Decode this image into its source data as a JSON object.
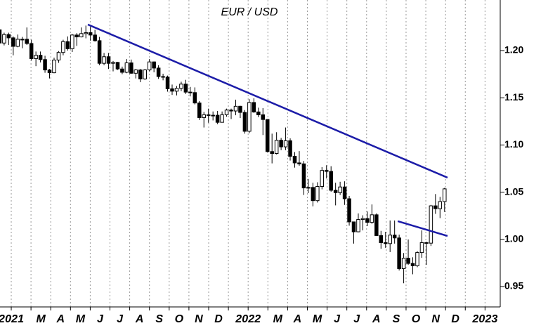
{
  "chart_data": {
    "type": "candlestick",
    "title": "EUR / USD",
    "x": [
      0.41,
      0.64,
      0.87,
      1.1,
      1.33,
      1.56,
      1.79,
      2.02,
      2.25,
      2.48,
      2.71,
      2.94,
      3.17,
      3.4,
      3.63,
      3.86,
      4.09,
      4.32,
      4.55,
      4.78,
      5.01,
      5.24,
      5.47,
      5.7,
      5.93,
      6.16,
      6.39,
      6.62,
      6.85,
      7.08,
      7.31,
      7.54,
      7.77,
      8.0,
      8.23,
      8.46,
      8.69,
      8.92,
      9.15,
      9.38,
      9.61,
      9.84,
      10.07,
      10.3,
      10.53,
      10.76,
      10.99,
      11.22,
      11.45,
      11.68,
      11.91,
      12.14,
      12.37,
      12.6,
      12.83,
      13.06,
      13.29,
      13.52,
      13.75,
      13.98,
      14.21,
      14.44,
      14.67,
      14.9,
      15.13,
      15.36,
      15.59,
      15.82,
      16.05,
      16.28,
      16.51,
      16.74,
      16.97,
      17.2,
      17.43,
      17.66,
      17.89,
      18.12,
      18.35,
      18.58,
      18.81,
      19.04,
      19.27,
      19.5,
      19.73,
      19.96,
      20.19,
      20.42,
      20.65,
      20.88,
      21.11,
      21.34,
      21.57,
      21.8,
      22.03,
      22.26,
      22.49,
      22.72,
      22.95
    ],
    "open": [
      1.222,
      1.208,
      1.217,
      1.2135,
      1.2045,
      1.212,
      1.212,
      1.2075,
      1.1915,
      1.195,
      1.1905,
      1.1795,
      1.1765,
      1.19,
      1.198,
      1.2095,
      1.202,
      1.2165,
      1.2145,
      1.218,
      1.219,
      1.2165,
      1.2105,
      1.1865,
      1.1935,
      1.1865,
      1.1875,
      1.1805,
      1.177,
      1.187,
      1.176,
      1.1795,
      1.17,
      1.1795,
      1.188,
      1.1815,
      1.1725,
      1.172,
      1.1595,
      1.157,
      1.16,
      1.1645,
      1.156,
      1.1555,
      1.1445,
      1.129,
      1.132,
      1.1315,
      1.1315,
      1.124,
      1.132,
      1.137,
      1.136,
      1.141,
      1.1345,
      1.1145,
      1.145,
      1.135,
      1.132,
      1.127,
      1.093,
      1.091,
      1.105,
      1.098,
      1.1045,
      1.088,
      1.081,
      1.08,
      1.0545,
      1.055,
      1.041,
      1.056,
      1.073,
      1.072,
      1.052,
      1.0495,
      1.0555,
      1.043,
      1.0185,
      1.008,
      1.021,
      1.022,
      1.018,
      1.026,
      1.004,
      0.9965,
      0.9955,
      1.0045,
      1.0015,
      0.969,
      0.98,
      0.9745,
      0.972,
      0.986,
      0.9965,
      0.996,
      1.0355,
      1.0325,
      1.04
    ],
    "high": [
      1.225,
      1.219,
      1.219,
      1.215,
      1.217,
      1.2145,
      1.2245,
      1.2115,
      1.199,
      1.199,
      1.1945,
      1.1805,
      1.1925,
      1.1995,
      1.2115,
      1.215,
      1.2175,
      1.2185,
      1.2245,
      1.2265,
      1.2255,
      1.222,
      1.2145,
      1.1975,
      1.1975,
      1.189,
      1.188,
      1.183,
      1.191,
      1.1905,
      1.1805,
      1.1805,
      1.1805,
      1.191,
      1.1885,
      1.1845,
      1.1755,
      1.1735,
      1.164,
      1.1625,
      1.167,
      1.169,
      1.1615,
      1.161,
      1.1465,
      1.135,
      1.1385,
      1.1355,
      1.136,
      1.1355,
      1.1385,
      1.1385,
      1.148,
      1.1415,
      1.137,
      1.1485,
      1.1495,
      1.1395,
      1.139,
      1.127,
      1.112,
      1.1135,
      1.1075,
      1.1185,
      1.107,
      1.0925,
      1.0935,
      1.083,
      1.064,
      1.06,
      1.0605,
      1.0765,
      1.0785,
      1.0775,
      1.06,
      1.061,
      1.0615,
      1.046,
      1.0185,
      1.0275,
      1.0255,
      1.0295,
      1.037,
      1.0275,
      1.009,
      1.008,
      1.02,
      1.02,
      1.005,
      0.9855,
      0.9999,
      0.981,
      0.9875,
      1.0095,
      0.9975,
      1.0365,
      1.048,
      1.045,
      1.0545
    ],
    "low": [
      1.2055,
      1.2055,
      1.206,
      1.195,
      1.2035,
      1.2025,
      1.206,
      1.1895,
      1.1835,
      1.1875,
      1.1765,
      1.1705,
      1.176,
      1.187,
      1.195,
      1.2,
      1.1985,
      1.205,
      1.214,
      1.213,
      1.2105,
      1.2095,
      1.1845,
      1.1845,
      1.1805,
      1.178,
      1.1795,
      1.175,
      1.176,
      1.1755,
      1.1705,
      1.1665,
      1.169,
      1.178,
      1.177,
      1.17,
      1.1685,
      1.1565,
      1.153,
      1.1525,
      1.157,
      1.154,
      1.1515,
      1.143,
      1.1265,
      1.1185,
      1.1235,
      1.126,
      1.122,
      1.1255,
      1.13,
      1.1275,
      1.1315,
      1.1285,
      1.112,
      1.1125,
      1.134,
      1.1295,
      1.1105,
      1.092,
      1.0805,
      1.09,
      1.0945,
      1.0945,
      1.0835,
      1.076,
      1.078,
      1.047,
      1.049,
      1.035,
      1.039,
      1.053,
      1.0645,
      1.0505,
      1.036,
      1.047,
      1.0365,
      1.0145,
      0.9955,
      1.0075,
      1.0095,
      1.014,
      1.0165,
      1.0035,
      0.99,
      0.991,
      0.9865,
      0.9955,
      0.967,
      0.9535,
      0.973,
      0.963,
      0.9705,
      0.9805,
      0.973,
      0.993,
      1.027,
      1.0225,
      1.029
    ],
    "close": [
      1.208,
      1.217,
      1.2135,
      1.2045,
      1.212,
      1.212,
      1.2075,
      1.1915,
      1.195,
      1.1905,
      1.1795,
      1.1765,
      1.19,
      1.198,
      1.2095,
      1.202,
      1.2165,
      1.2145,
      1.218,
      1.219,
      1.2165,
      1.2105,
      1.1865,
      1.1935,
      1.1865,
      1.1875,
      1.1805,
      1.177,
      1.187,
      1.176,
      1.1795,
      1.17,
      1.1795,
      1.188,
      1.1815,
      1.1725,
      1.172,
      1.1595,
      1.157,
      1.16,
      1.1645,
      1.156,
      1.1555,
      1.1445,
      1.129,
      1.132,
      1.1315,
      1.1315,
      1.124,
      1.132,
      1.137,
      1.136,
      1.141,
      1.1345,
      1.1145,
      1.145,
      1.135,
      1.132,
      1.127,
      1.093,
      1.091,
      1.105,
      1.098,
      1.1045,
      1.088,
      1.081,
      1.08,
      1.0545,
      1.055,
      1.041,
      1.056,
      1.073,
      1.072,
      1.052,
      1.0495,
      1.0555,
      1.043,
      1.0185,
      1.008,
      1.021,
      1.022,
      1.018,
      1.026,
      1.004,
      0.9965,
      0.9955,
      1.0045,
      1.0015,
      0.969,
      0.98,
      0.9745,
      0.972,
      0.986,
      0.9965,
      0.996,
      1.0355,
      1.0325,
      1.04,
      1.0535
    ],
    "up_color": "#ffffff",
    "down_color": "#000000",
    "outline_color": "#000000",
    "trendlines": [
      {
        "x": [
          4.88,
          23.1
        ],
        "y": [
          1.2276,
          1.0654
        ],
        "color": "#1c1ca8"
      },
      {
        "x": [
          20.58,
          23.1
        ],
        "y": [
          1.0192,
          1.0036
        ],
        "color": "#1c1ca8"
      }
    ],
    "xlim": [
      0.43,
      25.77
    ],
    "xticks": [
      {
        "value": 0,
        "label": "2021"
      },
      {
        "value": 1,
        "label": null
      },
      {
        "value": 2,
        "label": "M"
      },
      {
        "value": 3,
        "label": "A"
      },
      {
        "value": 4,
        "label": "M"
      },
      {
        "value": 5,
        "label": "J"
      },
      {
        "value": 6,
        "label": "J"
      },
      {
        "value": 7,
        "label": "A"
      },
      {
        "value": 8,
        "label": "S"
      },
      {
        "value": 9,
        "label": "O"
      },
      {
        "value": 10,
        "label": "N"
      },
      {
        "value": 11,
        "label": "D"
      },
      {
        "value": 12,
        "label": "2022"
      },
      {
        "value": 13,
        "label": null
      },
      {
        "value": 14,
        "label": "M"
      },
      {
        "value": 15,
        "label": "A"
      },
      {
        "value": 16,
        "label": "M"
      },
      {
        "value": 17,
        "label": "J"
      },
      {
        "value": 18,
        "label": "J"
      },
      {
        "value": 19,
        "label": "A"
      },
      {
        "value": 20,
        "label": "S"
      },
      {
        "value": 21,
        "label": "O"
      },
      {
        "value": 22,
        "label": "N"
      },
      {
        "value": 23,
        "label": "D"
      },
      {
        "value": 24,
        "label": "2023"
      },
      {
        "value": 25,
        "label": null
      }
    ],
    "ylim": [
      0.9284,
      1.2536
    ],
    "yticks": [
      0.95,
      {
        "value": 1,
        "label": "1.00"
      },
      1.05,
      {
        "value": 1.1,
        "label": "1.10"
      },
      1.15,
      {
        "value": 1.2,
        "label": "1.20"
      }
    ],
    "xgrid": true
  }
}
